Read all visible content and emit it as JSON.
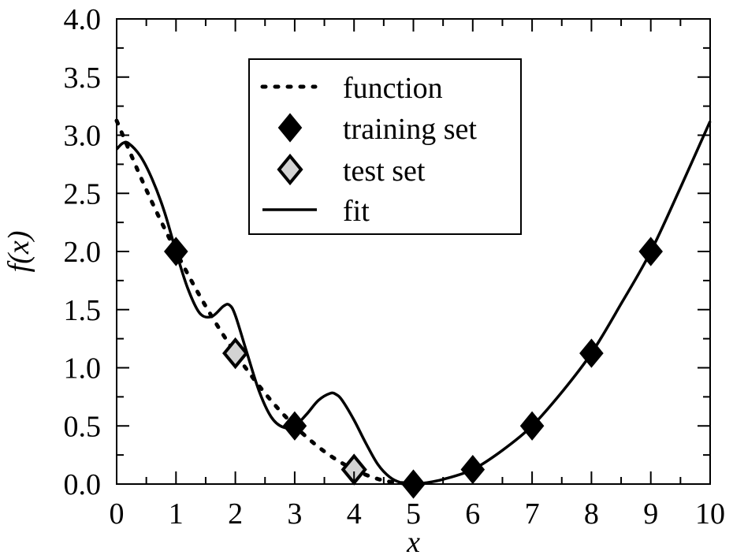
{
  "chart_data": {
    "type": "line",
    "xlabel": "x",
    "ylabel": "f(x)",
    "xlim": [
      0,
      10
    ],
    "ylim": [
      0,
      4
    ],
    "x_ticks": [
      "0",
      "1",
      "2",
      "3",
      "4",
      "5",
      "6",
      "7",
      "8",
      "9",
      "10"
    ],
    "y_ticks": [
      "0.0",
      "0.5",
      "1.0",
      "1.5",
      "2.0",
      "2.5",
      "3.0",
      "3.5",
      "4.0"
    ],
    "grid": false,
    "legend_position": "top-center",
    "series": [
      {
        "name": "function",
        "style": "dotted",
        "color": "#000000",
        "x": [
          0,
          0.5,
          1,
          1.5,
          2,
          2.5,
          3,
          3.5,
          4,
          4.5,
          5
        ],
        "y": [
          3.125,
          2.53,
          2.0,
          1.53,
          1.125,
          0.78,
          0.5,
          0.28,
          0.125,
          0.03,
          0.0
        ]
      },
      {
        "name": "training set",
        "marker": "diamond",
        "color": "#000000",
        "x": [
          1,
          3,
          5,
          6,
          7,
          8,
          9
        ],
        "y": [
          2.0,
          0.5,
          0.0,
          0.125,
          0.5,
          1.125,
          2.0
        ]
      },
      {
        "name": "test set",
        "marker": "diamond",
        "color": "#d3d3d3",
        "x": [
          2,
          4
        ],
        "y": [
          1.125,
          0.125
        ]
      },
      {
        "name": "fit",
        "style": "solid",
        "color": "#000000",
        "x": [
          0,
          0.1,
          0.2,
          0.4,
          0.6,
          0.8,
          1.0,
          1.2,
          1.4,
          1.6,
          1.8,
          1.9,
          2.0,
          2.2,
          2.4,
          2.6,
          2.8,
          3.0,
          3.2,
          3.4,
          3.6,
          3.7,
          3.8,
          4.0,
          4.2,
          4.4,
          4.6,
          4.8,
          5.0,
          5.2,
          5.5,
          6.0,
          6.5,
          7.0,
          7.5,
          8.0,
          8.5,
          9.0,
          9.5,
          10.0
        ],
        "y": [
          2.88,
          2.93,
          2.93,
          2.82,
          2.62,
          2.35,
          2.0,
          1.68,
          1.47,
          1.44,
          1.53,
          1.54,
          1.45,
          1.12,
          0.8,
          0.58,
          0.49,
          0.5,
          0.6,
          0.72,
          0.78,
          0.77,
          0.72,
          0.55,
          0.35,
          0.17,
          0.06,
          0.01,
          0.0,
          0.01,
          0.04,
          0.125,
          0.29,
          0.5,
          0.79,
          1.125,
          1.55,
          2.0,
          2.55,
          3.12
        ]
      }
    ]
  }
}
